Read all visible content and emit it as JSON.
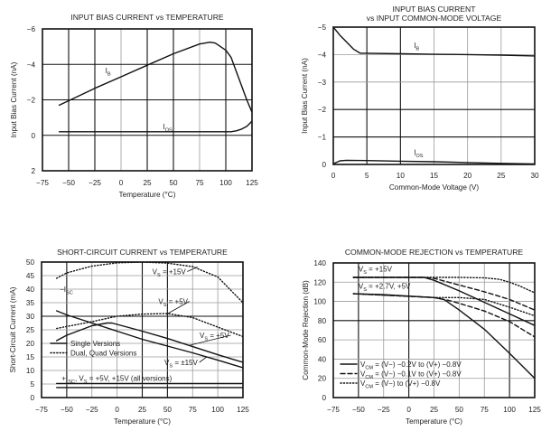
{
  "chart_data": [
    {
      "id": "c1",
      "type": "line",
      "title": [
        "INPUT BIAS CURRENT vs TEMPERATURE"
      ],
      "xlabel": "Temperature (°C)",
      "ylabel": "Input Bias Current (nA)",
      "xlim": [
        -75,
        125
      ],
      "ylim": [
        2,
        -6
      ],
      "xticks": [
        -75,
        -50,
        -25,
        0,
        25,
        50,
        75,
        100,
        125
      ],
      "xtick_labels": [
        "−75",
        "−50",
        "−25",
        "0",
        "25",
        "50",
        "75",
        "100",
        "125"
      ],
      "yticks": [
        -6,
        -4,
        -2,
        0,
        2
      ],
      "ytick_labels": [
        "−6",
        "−4",
        "−2",
        "0",
        "2"
      ],
      "grid": true,
      "dark_x": [
        -50,
        -25,
        25,
        50,
        100
      ],
      "dark_y": [
        -4,
        -2,
        0
      ],
      "series": [
        {
          "name": "IB",
          "style": "solid",
          "x": [
            -59,
            -50,
            -25,
            0,
            25,
            50,
            75,
            85,
            90,
            100,
            105,
            110,
            115,
            120,
            125
          ],
          "y": [
            -1.7,
            -1.95,
            -2.65,
            -3.3,
            -3.95,
            -4.6,
            -5.15,
            -5.25,
            -5.2,
            -4.8,
            -4.4,
            -3.6,
            -2.8,
            -2.0,
            -1.3
          ]
        },
        {
          "name": "IOS",
          "style": "solid",
          "x": [
            -59,
            0,
            50,
            100,
            105,
            110,
            115,
            120,
            125
          ],
          "y": [
            -0.2,
            -0.2,
            -0.2,
            -0.2,
            -0.2,
            -0.25,
            -0.35,
            -0.5,
            -0.8
          ]
        }
      ],
      "annotations": [
        {
          "text": "I",
          "sub": "B",
          "x": -15,
          "y": -3.5
        },
        {
          "text": "I",
          "sub": "OS",
          "x": 40,
          "y": -0.35
        }
      ]
    },
    {
      "id": "c2",
      "type": "line",
      "title": [
        "INPUT BIAS CURRENT",
        "vs INPUT COMMON-MODE VOLTAGE"
      ],
      "xlabel": "Common-Mode Voltage (V)",
      "ylabel": "Input Bias Current (nA)",
      "xlim": [
        0,
        30
      ],
      "ylim": [
        0,
        -5
      ],
      "xticks": [
        0,
        5,
        10,
        15,
        20,
        25,
        30
      ],
      "xtick_labels": [
        "0",
        "5",
        "10",
        "15",
        "20",
        "25",
        "30"
      ],
      "yticks": [
        -5,
        -4,
        -3,
        -2,
        -1,
        0
      ],
      "ytick_labels": [
        "−5",
        "−4",
        "−3",
        "−2",
        "−1",
        "0"
      ],
      "grid": true,
      "dark_x": [
        5,
        10
      ],
      "dark_y": [
        -2,
        -1
      ],
      "series": [
        {
          "name": "IB",
          "style": "solid",
          "x": [
            0,
            1,
            2,
            3,
            4,
            5,
            10,
            15,
            20,
            25,
            30
          ],
          "y": [
            -5.0,
            -4.7,
            -4.45,
            -4.2,
            -4.05,
            -4.05,
            -4.03,
            -4.01,
            -4.0,
            -3.98,
            -3.95
          ]
        },
        {
          "name": "IOS",
          "style": "solid",
          "x": [
            0,
            0.5,
            1,
            2,
            5,
            10,
            15,
            20,
            25,
            30
          ],
          "y": [
            -0.02,
            -0.08,
            -0.13,
            -0.15,
            -0.14,
            -0.12,
            -0.1,
            -0.07,
            -0.04,
            -0.02
          ]
        }
      ],
      "annotations": [
        {
          "text": "I",
          "sub": "B",
          "x": 12,
          "y": -4.25
        },
        {
          "text": "I",
          "sub": "OS",
          "x": 12,
          "y": -0.35
        }
      ]
    },
    {
      "id": "c3",
      "type": "line",
      "title": [
        "SHORT-CIRCUIT CURRENT vs TEMPERATURE"
      ],
      "xlabel": "Temperature (°C)",
      "ylabel": "Short-Circuit Current (mA)",
      "xlim": [
        -75,
        125
      ],
      "ylim": [
        0,
        50
      ],
      "xticks": [
        -75,
        -50,
        -25,
        0,
        25,
        50,
        75,
        100,
        125
      ],
      "xtick_labels": [
        "−75",
        "−50",
        "−25",
        "0",
        "25",
        "50",
        "75",
        "100",
        "125"
      ],
      "yticks": [
        0,
        5,
        10,
        15,
        20,
        25,
        30,
        35,
        40,
        45,
        50
      ],
      "ytick_labels": [
        "0",
        "5",
        "10",
        "15",
        "20",
        "25",
        "30",
        "35",
        "40",
        "45",
        "50"
      ],
      "grid": true,
      "dark_x": [
        -50,
        25,
        50
      ],
      "dark_y": [
        30
      ],
      "series": [
        {
          "name": "-ISC VS=+15V Dual/Quad",
          "style": "dotted",
          "x": [
            -60,
            -50,
            -25,
            0,
            25,
            50,
            75,
            100,
            125
          ],
          "y": [
            44,
            46,
            48.5,
            49.7,
            50,
            49.6,
            48.3,
            44.5,
            35
          ]
        },
        {
          "name": "-ISC VS=+5V Dual/Quad",
          "style": "dotted",
          "x": [
            -60,
            -25,
            0,
            25,
            50,
            75,
            100,
            125
          ],
          "y": [
            25.5,
            28,
            30,
            30.8,
            31,
            29.5,
            26,
            22.5
          ]
        },
        {
          "name": "-ISC VS=+5V Single",
          "style": "solid",
          "x": [
            -60,
            -50,
            -25,
            -10,
            -5,
            0,
            25,
            50,
            75,
            100,
            125
          ],
          "y": [
            21,
            23,
            26.5,
            27.5,
            27.5,
            27,
            24.5,
            21.8,
            18.8,
            15.8,
            13
          ]
        },
        {
          "name": "-ISC VS=±15V Single",
          "style": "solid",
          "x": [
            -60,
            -50,
            -25,
            0,
            25,
            50,
            75,
            100,
            125
          ],
          "y": [
            32,
            30.5,
            27.5,
            24.5,
            21.5,
            19,
            16.5,
            13.8,
            11
          ]
        },
        {
          "name": "+ISC upper",
          "style": "solid",
          "x": [
            -60,
            125
          ],
          "y": [
            5.2,
            5.2
          ]
        },
        {
          "name": "+ISC lower",
          "style": "solid",
          "x": [
            -60,
            125
          ],
          "y": [
            3.7,
            3.7
          ]
        }
      ],
      "legend": [
        {
          "label": "Single Versions",
          "style": "solid"
        },
        {
          "label": "Dual, Quad Versions",
          "style": "dotted"
        }
      ],
      "legend_position": "lower-left",
      "annotations": [
        {
          "text": "−I",
          "sub": "SC",
          "x": -57,
          "y": 39
        },
        {
          "text": "V",
          "sub": "S",
          "post": " = +15V",
          "x": 35,
          "y": 45.5,
          "arrow_to": [
            80,
            48.2
          ]
        },
        {
          "text": "V",
          "sub": "S",
          "post": " = +5V",
          "x": 41,
          "y": 34.5,
          "arrow_to": [
            49,
            30.7
          ]
        },
        {
          "text": "V",
          "sub": "S",
          "post": " = +5V",
          "x": 82,
          "y": 22,
          "arrow_to": [
            71,
            19.2
          ]
        },
        {
          "text": "V",
          "sub": "S",
          "post": " = ±15V",
          "x": 47,
          "y": 12,
          "arrow_to": [
            89,
            15
          ]
        },
        {
          "text": "+I",
          "sub": "SC",
          "post": ", V",
          "sub2": "S",
          "post2": " = +5V, +15V (all versions)",
          "x": -55,
          "y": 6.2
        }
      ]
    },
    {
      "id": "c4",
      "type": "line",
      "title": [
        "COMMON-MODE REJECTION vs TEMPERATURE"
      ],
      "xlabel": "Temperature (°C)",
      "ylabel": "Common-Mode Rejection (dB)",
      "xlim": [
        -75,
        125
      ],
      "ylim": [
        0,
        140
      ],
      "xticks": [
        -75,
        -50,
        -25,
        0,
        25,
        50,
        75,
        100,
        125
      ],
      "xtick_labels": [
        "−75",
        "−50",
        "−25",
        "0",
        "25",
        "50",
        "75",
        "100",
        "125"
      ],
      "yticks": [
        0,
        20,
        40,
        60,
        80,
        100,
        120,
        140
      ],
      "ytick_labels": [
        "0",
        "20",
        "40",
        "60",
        "80",
        "100",
        "120",
        "140"
      ],
      "grid": true,
      "dark_x": [
        -50,
        0,
        100
      ],
      "dark_y": [
        80
      ],
      "series": [
        {
          "name": "VS=+15V, VCM=(V−)−0.2V to (V+)−0.8V",
          "style": "solid",
          "x": [
            -55,
            0,
            15,
            25,
            50,
            75,
            100,
            125
          ],
          "y": [
            125,
            125,
            125,
            122,
            111,
            99,
            87,
            75
          ]
        },
        {
          "name": "VS=+15V, VCM=(V−)−0.1V to (V+)−0.8V",
          "style": "dashed",
          "x": [
            -55,
            15,
            25,
            50,
            75,
            100,
            125
          ],
          "y": [
            125,
            125,
            124,
            117,
            110,
            102,
            91
          ]
        },
        {
          "name": "VS=+15V, VCM=(V−) to (V+)−0.8V",
          "style": "dotted",
          "x": [
            -55,
            15,
            50,
            75,
            90,
            100,
            110,
            125
          ],
          "y": [
            125,
            125,
            125,
            124.5,
            123,
            120,
            116,
            109
          ]
        },
        {
          "name": "VS=+2.7V,+5V, VCM=(V−)−0.2V to (V+)−0.8V",
          "style": "solid",
          "x": [
            -55,
            -25,
            0,
            25,
            35,
            50,
            75,
            100,
            125
          ],
          "y": [
            108,
            107,
            105.5,
            104,
            102,
            91,
            71,
            46,
            20
          ]
        },
        {
          "name": "VS=+2.7V,+5V, VCM=(V−)−0.1V to (V+)−0.8V",
          "style": "dashed",
          "x": [
            -55,
            25,
            40,
            50,
            75,
            100,
            125
          ],
          "y": [
            108,
            104,
            101,
            98,
            90,
            79,
            63
          ]
        },
        {
          "name": "VS=+2.7V,+5V, VCM=(V−) to (V+)−0.8V",
          "style": "dotted",
          "x": [
            -55,
            25,
            50,
            75,
            100,
            125
          ],
          "y": [
            108,
            104,
            104,
            102,
            94,
            85
          ]
        }
      ],
      "legend": [
        {
          "label": "V",
          "sub": "CM",
          "post": " = (V−) −0.2V to (V+) −0.8V",
          "style": "solid"
        },
        {
          "label": "V",
          "sub": "CM",
          "post": " = (V−) −0.1V to (V+) −0.8V",
          "style": "dashed"
        },
        {
          "label": "V",
          "sub": "CM",
          "post": " = (V−) to (V+) −0.8V",
          "style": "dotted"
        }
      ],
      "legend_position": "lower-left",
      "annotations": [
        {
          "text": "V",
          "sub": "S",
          "post": " = +15V",
          "x": -50,
          "y": 131
        },
        {
          "text": "V",
          "sub": "S",
          "post": " = +2.7V, +5V",
          "x": -50,
          "y": 113
        }
      ]
    }
  ]
}
